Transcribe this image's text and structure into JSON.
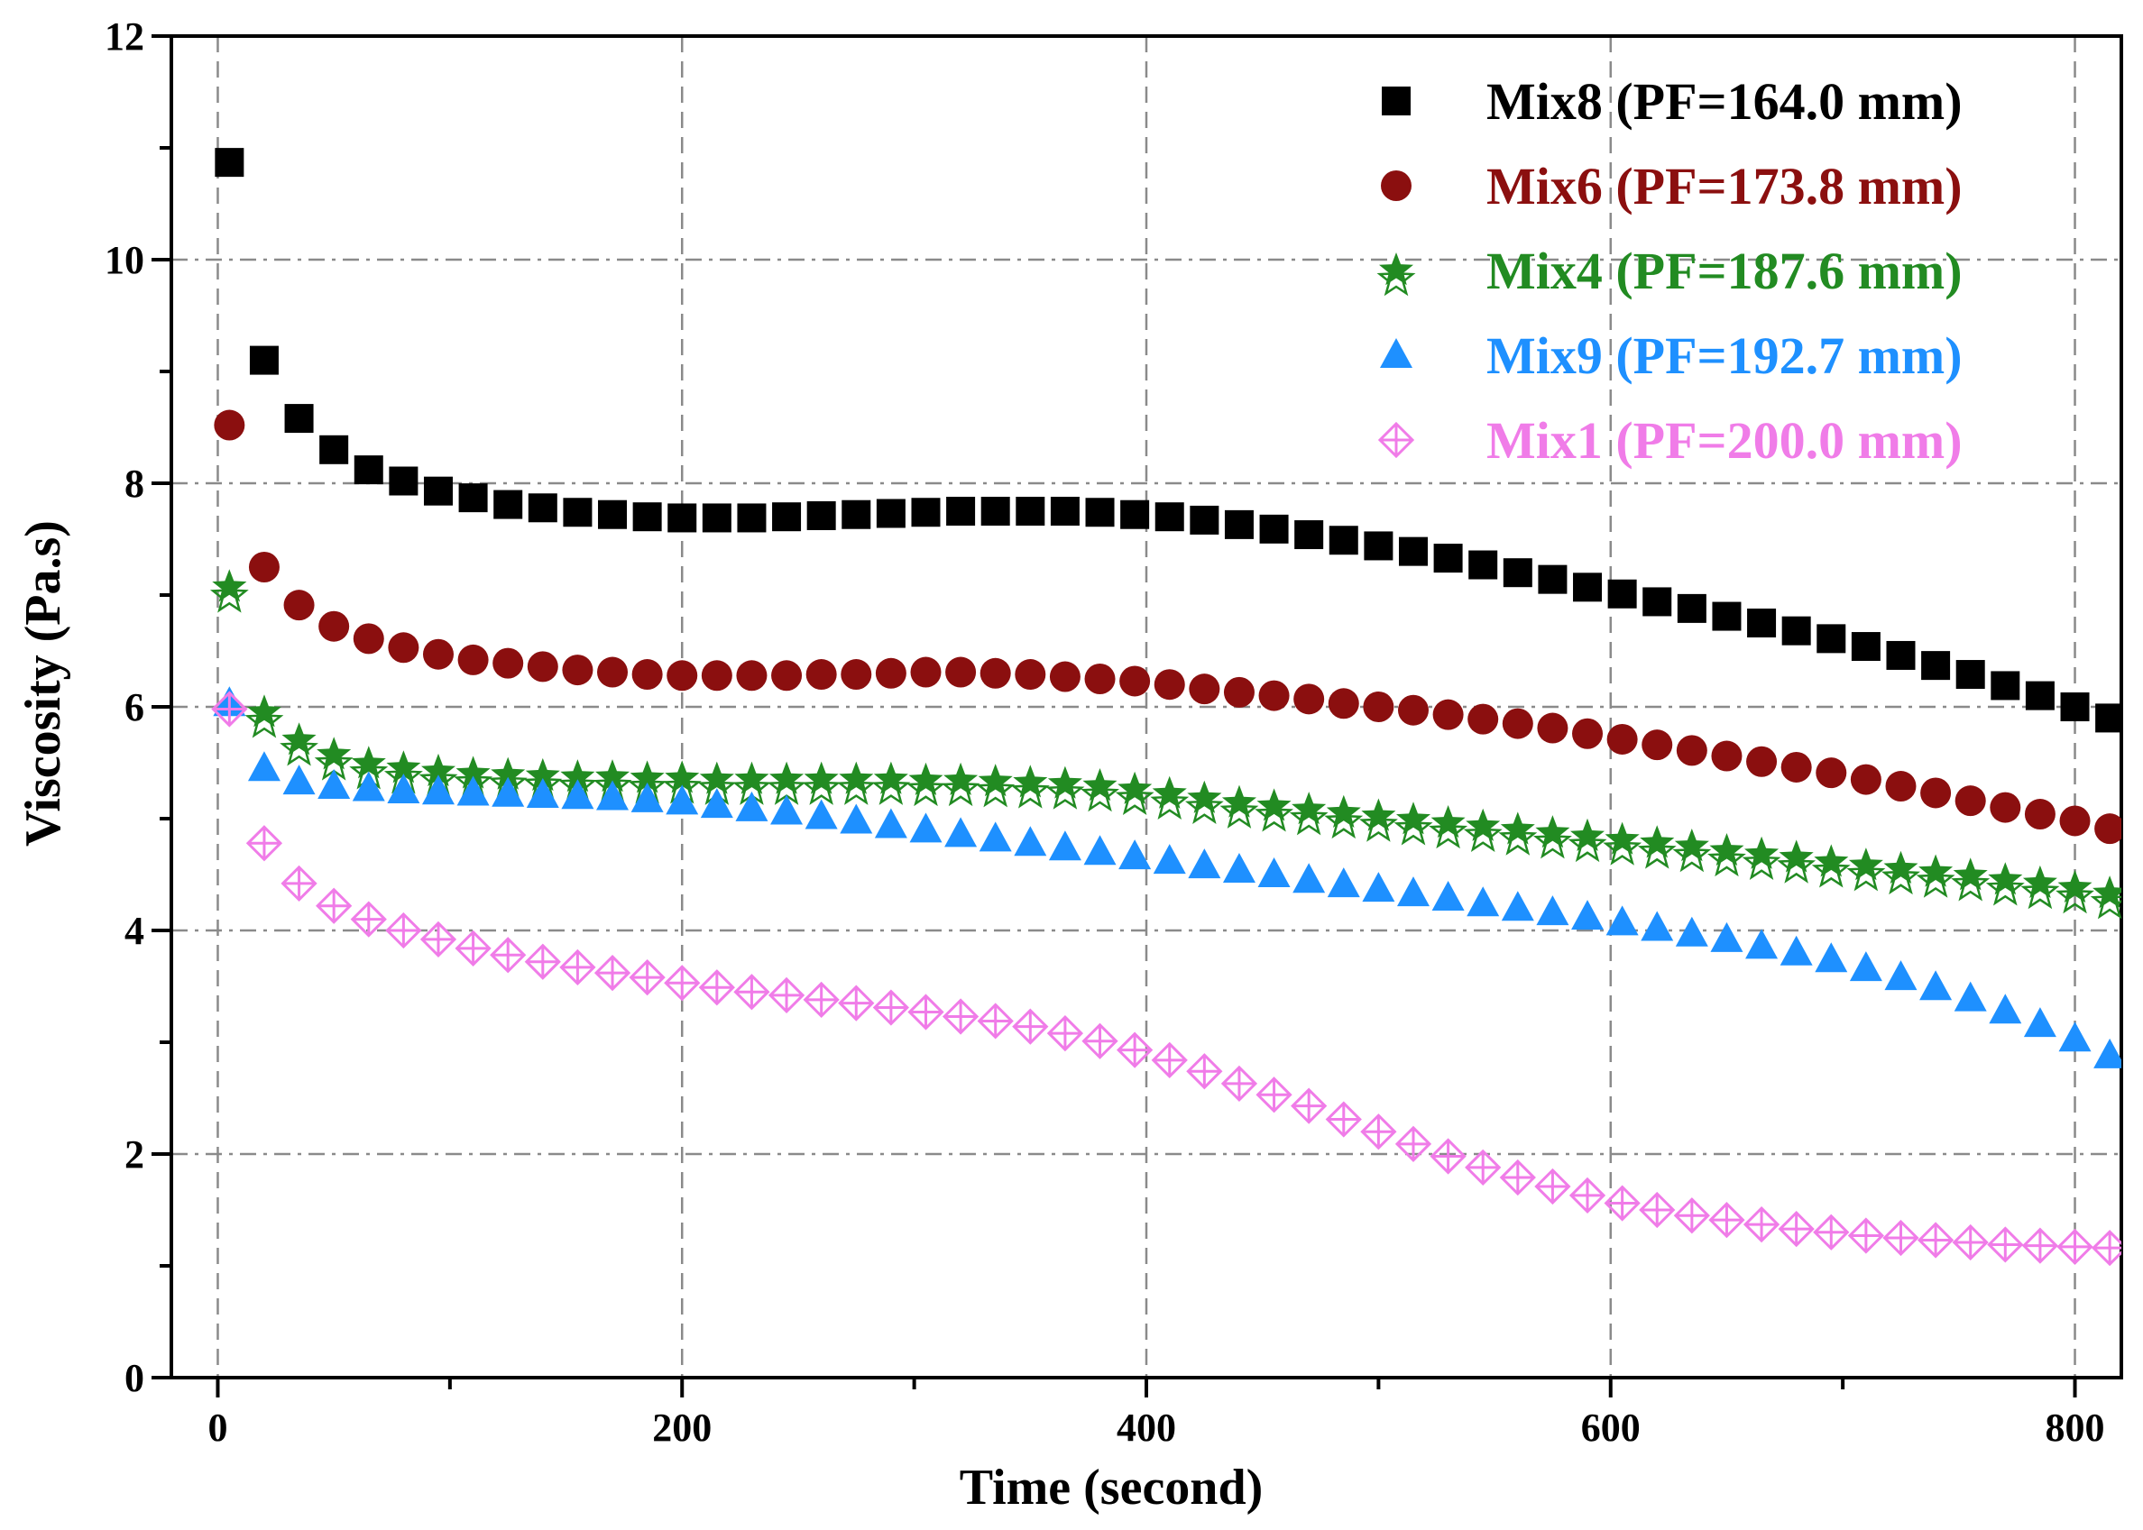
{
  "chart_data": {
    "type": "scatter",
    "title": "",
    "xlabel": "Time (second)",
    "ylabel": "Viscosity (Pa.s)",
    "xlim": [
      -20,
      820
    ],
    "ylim": [
      0,
      12
    ],
    "xticks": [
      0,
      200,
      400,
      600,
      800
    ],
    "yticks": [
      0,
      2,
      4,
      6,
      8,
      10,
      12
    ],
    "grid": true,
    "legend_position": "top-right",
    "series": [
      {
        "name": "Mix8 (PF=164.0 mm)",
        "color": "#000000",
        "marker": "square",
        "x": [
          5,
          20,
          35,
          50,
          65,
          80,
          95,
          110,
          125,
          140,
          155,
          170,
          185,
          200,
          215,
          230,
          245,
          260,
          275,
          290,
          305,
          320,
          335,
          350,
          365,
          380,
          395,
          410,
          425,
          440,
          455,
          470,
          485,
          500,
          515,
          530,
          545,
          560,
          575,
          590,
          605,
          620,
          635,
          650,
          665,
          680,
          695,
          710,
          725,
          740,
          755,
          770,
          785,
          800,
          815
        ],
        "y": [
          10.87,
          9.1,
          8.58,
          8.3,
          8.12,
          8.02,
          7.93,
          7.87,
          7.81,
          7.78,
          7.74,
          7.72,
          7.7,
          7.69,
          7.69,
          7.69,
          7.7,
          7.71,
          7.72,
          7.73,
          7.74,
          7.75,
          7.75,
          7.75,
          7.75,
          7.74,
          7.72,
          7.7,
          7.67,
          7.63,
          7.59,
          7.54,
          7.49,
          7.44,
          7.39,
          7.33,
          7.27,
          7.2,
          7.14,
          7.07,
          7.01,
          6.94,
          6.88,
          6.81,
          6.75,
          6.68,
          6.61,
          6.54,
          6.46,
          6.37,
          6.29,
          6.19,
          6.1,
          6.0,
          5.9
        ]
      },
      {
        "name": "Mix6 (PF=173.8 mm)",
        "color": "#8B0F0F",
        "marker": "circle",
        "x": [
          5,
          20,
          35,
          50,
          65,
          80,
          95,
          110,
          125,
          140,
          155,
          170,
          185,
          200,
          215,
          230,
          245,
          260,
          275,
          290,
          305,
          320,
          335,
          350,
          365,
          380,
          395,
          410,
          425,
          440,
          455,
          470,
          485,
          500,
          515,
          530,
          545,
          560,
          575,
          590,
          605,
          620,
          635,
          650,
          665,
          680,
          695,
          710,
          725,
          740,
          755,
          770,
          785,
          800,
          815
        ],
        "y": [
          8.52,
          7.25,
          6.91,
          6.72,
          6.61,
          6.53,
          6.47,
          6.42,
          6.39,
          6.36,
          6.33,
          6.31,
          6.29,
          6.28,
          6.28,
          6.28,
          6.28,
          6.29,
          6.29,
          6.3,
          6.31,
          6.31,
          6.3,
          6.29,
          6.27,
          6.25,
          6.23,
          6.2,
          6.16,
          6.13,
          6.1,
          6.07,
          6.03,
          6.0,
          5.97,
          5.93,
          5.89,
          5.85,
          5.81,
          5.76,
          5.71,
          5.66,
          5.61,
          5.56,
          5.51,
          5.46,
          5.41,
          5.35,
          5.29,
          5.23,
          5.16,
          5.1,
          5.04,
          4.98,
          4.91
        ]
      },
      {
        "name": "Mix4 (PF=187.6 mm)",
        "color": "#228B22",
        "marker": "star",
        "x": [
          5,
          20,
          35,
          50,
          65,
          80,
          95,
          110,
          125,
          140,
          155,
          170,
          185,
          200,
          215,
          230,
          245,
          260,
          275,
          290,
          305,
          320,
          335,
          350,
          365,
          380,
          395,
          410,
          425,
          440,
          455,
          470,
          485,
          500,
          515,
          530,
          545,
          560,
          575,
          590,
          605,
          620,
          635,
          650,
          665,
          680,
          695,
          710,
          725,
          740,
          755,
          770,
          785,
          800,
          815
        ],
        "y": [
          7.07,
          5.95,
          5.7,
          5.57,
          5.49,
          5.45,
          5.42,
          5.4,
          5.39,
          5.38,
          5.37,
          5.37,
          5.36,
          5.36,
          5.35,
          5.35,
          5.35,
          5.35,
          5.35,
          5.35,
          5.34,
          5.34,
          5.33,
          5.32,
          5.31,
          5.29,
          5.26,
          5.22,
          5.18,
          5.14,
          5.11,
          5.08,
          5.05,
          5.02,
          4.99,
          4.96,
          4.93,
          4.9,
          4.87,
          4.84,
          4.81,
          4.78,
          4.75,
          4.71,
          4.68,
          4.65,
          4.61,
          4.58,
          4.55,
          4.52,
          4.49,
          4.45,
          4.42,
          4.38,
          4.33
        ]
      },
      {
        "name": "Mix9 (PF=192.7 mm)",
        "color": "#1E90FF",
        "marker": "triangle",
        "x": [
          5,
          20,
          35,
          50,
          65,
          80,
          95,
          110,
          125,
          140,
          155,
          170,
          185,
          200,
          215,
          230,
          245,
          260,
          275,
          290,
          305,
          320,
          335,
          350,
          365,
          380,
          395,
          410,
          425,
          440,
          455,
          470,
          485,
          500,
          515,
          530,
          545,
          560,
          575,
          590,
          605,
          620,
          635,
          650,
          665,
          680,
          695,
          710,
          725,
          740,
          755,
          770,
          785,
          800,
          815
        ],
        "y": [
          6.03,
          5.45,
          5.33,
          5.29,
          5.27,
          5.25,
          5.24,
          5.23,
          5.22,
          5.21,
          5.2,
          5.19,
          5.17,
          5.15,
          5.12,
          5.09,
          5.06,
          5.02,
          4.98,
          4.94,
          4.9,
          4.86,
          4.82,
          4.78,
          4.74,
          4.7,
          4.66,
          4.62,
          4.58,
          4.54,
          4.5,
          4.45,
          4.41,
          4.37,
          4.33,
          4.29,
          4.24,
          4.2,
          4.16,
          4.12,
          4.07,
          4.02,
          3.97,
          3.92,
          3.86,
          3.8,
          3.74,
          3.66,
          3.58,
          3.49,
          3.39,
          3.28,
          3.16,
          3.03,
          2.88
        ]
      },
      {
        "name": "Mix1 (PF=200.0 mm)",
        "color": "#F07CE8",
        "marker": "diamond-plus",
        "x": [
          5,
          20,
          35,
          50,
          65,
          80,
          95,
          110,
          125,
          140,
          155,
          170,
          185,
          200,
          215,
          230,
          245,
          260,
          275,
          290,
          305,
          320,
          335,
          350,
          365,
          380,
          395,
          410,
          425,
          440,
          455,
          470,
          485,
          500,
          515,
          530,
          545,
          560,
          575,
          590,
          605,
          620,
          635,
          650,
          665,
          680,
          695,
          710,
          725,
          740,
          755,
          770,
          785,
          800,
          815
        ],
        "y": [
          5.98,
          4.78,
          4.42,
          4.22,
          4.1,
          4.0,
          3.92,
          3.84,
          3.78,
          3.72,
          3.67,
          3.62,
          3.58,
          3.53,
          3.49,
          3.45,
          3.42,
          3.38,
          3.35,
          3.31,
          3.27,
          3.23,
          3.19,
          3.14,
          3.08,
          3.01,
          2.93,
          2.84,
          2.74,
          2.63,
          2.53,
          2.43,
          2.31,
          2.2,
          2.09,
          1.98,
          1.88,
          1.79,
          1.71,
          1.63,
          1.56,
          1.5,
          1.45,
          1.41,
          1.37,
          1.33,
          1.3,
          1.27,
          1.25,
          1.23,
          1.21,
          1.19,
          1.18,
          1.17,
          1.16
        ]
      }
    ]
  }
}
